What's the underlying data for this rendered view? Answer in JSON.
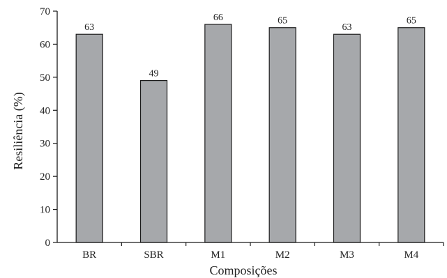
{
  "chart_data": {
    "type": "bar",
    "title": "",
    "xlabel": "Composições",
    "ylabel": "Resiliência (%)",
    "categories": [
      "BR",
      "SBR",
      "M1",
      "M2",
      "M3",
      "M4"
    ],
    "values": [
      63,
      49,
      66,
      65,
      63,
      65
    ],
    "data_labels": [
      "63",
      "49",
      "66",
      "65",
      "63",
      "65"
    ],
    "ylim": [
      0,
      70
    ],
    "yticks": [
      0,
      10,
      20,
      30,
      40,
      50,
      60,
      70
    ],
    "grid": false,
    "legend": "none",
    "colors": {
      "bar_fill": "#a6a8ab",
      "bar_stroke": "#1a1a1a",
      "axis": "#1a1a1a"
    }
  }
}
